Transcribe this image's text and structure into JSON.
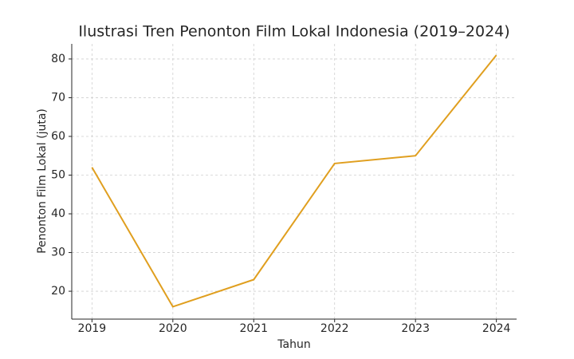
{
  "chart_data": {
    "type": "line",
    "title": "Ilustrasi Tren Penonton Film Lokal Indonesia (2019–2024)",
    "x_label": "Tahun",
    "y_label": "Penonton Film Lokal (juta)",
    "x": [
      2019,
      2020,
      2021,
      2022,
      2023,
      2024
    ],
    "values": [
      52,
      16,
      23,
      53,
      55,
      81
    ],
    "color": "#e09f1f",
    "xlim": [
      2018.75,
      2024.25
    ],
    "xticks": [
      2019,
      2020,
      2021,
      2022,
      2023,
      2024
    ],
    "ylim": [
      12.8,
      83.9
    ],
    "yticks": [
      20,
      30,
      40,
      50,
      60,
      70,
      80
    ],
    "grid": true
  }
}
